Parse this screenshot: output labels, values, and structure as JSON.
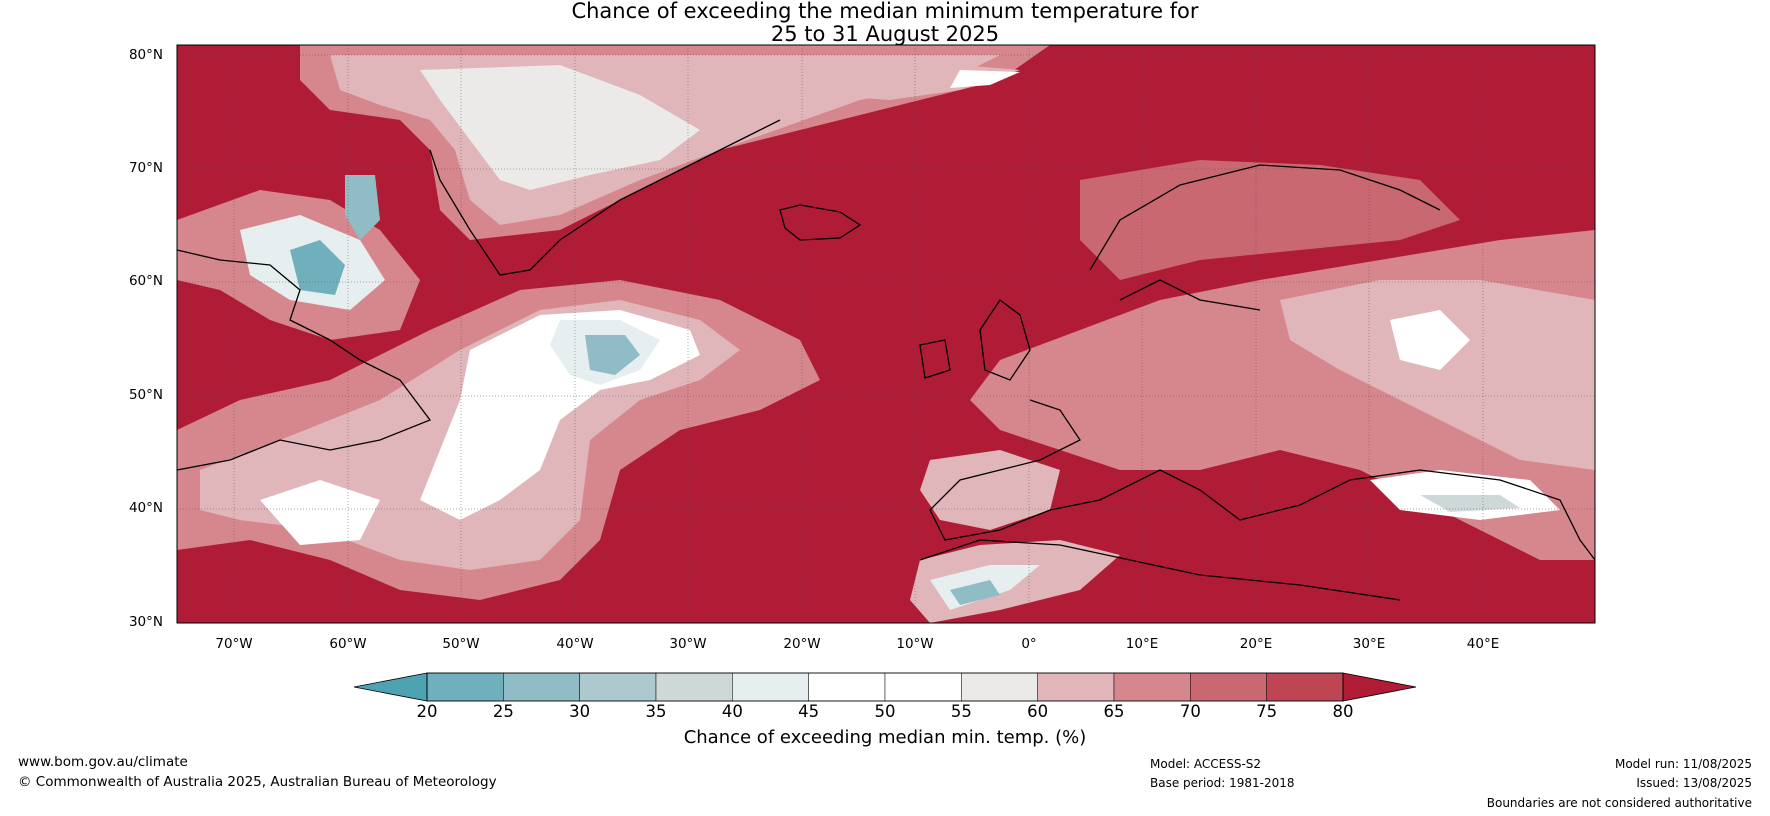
{
  "title_line1": "Chance of exceeding the median minimum temperature for",
  "title_line2": "25 to 31 August 2025",
  "lat_labels": [
    "80°N",
    "70°N",
    "60°N",
    "50°N",
    "40°N",
    "30°N"
  ],
  "lon_labels": [
    "70°W",
    "60°W",
    "50°W",
    "40°W",
    "30°W",
    "20°W",
    "10°W",
    "0°",
    "10°E",
    "20°E",
    "30°E",
    "40°E"
  ],
  "colorbar": {
    "ticks": [
      "20",
      "25",
      "30",
      "35",
      "40",
      "45",
      "50",
      "55",
      "60",
      "65",
      "70",
      "75",
      "80"
    ],
    "colors": [
      "#4ea3b3",
      "#6fb0bc",
      "#8fbcc5",
      "#adc9cd",
      "#cfd8d9",
      "#e6eeef",
      "#ffffff",
      "#ffffff",
      "#eceae9",
      "#e1b6ba",
      "#d6868d",
      "#c96871",
      "#bd4554",
      "#b01c36"
    ],
    "label": "Chance of exceeding median min. temp. (%)"
  },
  "footer": {
    "url": "www.bom.gov.au/climate",
    "copyright": "© Commonwealth of Australia 2025, Australian Bureau of Meteorology",
    "model": "Model: ACCESS-S2",
    "base_period": "Base period: 1981-2018",
    "model_run": "Model run: 11/08/2025",
    "issued": "Issued: 13/08/2025",
    "disclaimer": "Boundaries are not considered authoritative"
  }
}
